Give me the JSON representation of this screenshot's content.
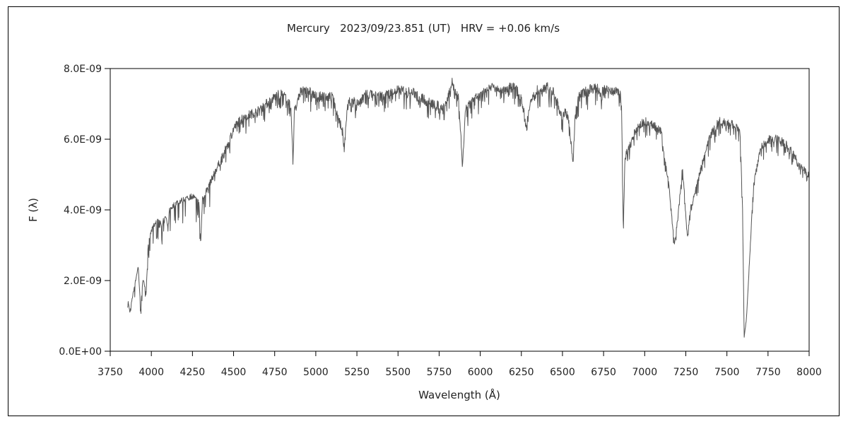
{
  "chart_data": {
    "type": "line",
    "title": "Mercury   2023/09/23.851 (UT)   HRV = +0.06 km/s",
    "xlabel": "Wavelength (Å)",
    "ylabel": "F (λ)",
    "xlim": [
      3750,
      8000
    ],
    "ylim": [
      0,
      8e-09
    ],
    "grid": false,
    "x_ticks": [
      3750,
      4000,
      4250,
      4500,
      4750,
      5000,
      5250,
      5500,
      5750,
      6000,
      6250,
      6500,
      6750,
      7000,
      7250,
      7500,
      7750,
      8000
    ],
    "x_tick_labels": [
      "3750",
      "4000",
      "4250",
      "4500",
      "4750",
      "5000",
      "5250",
      "5500",
      "5750",
      "6000",
      "6250",
      "6500",
      "6750",
      "7000",
      "7250",
      "7500",
      "7750",
      "8000"
    ],
    "y_ticks": [
      0,
      2e-09,
      4e-09,
      6e-09,
      8e-09
    ],
    "y_tick_labels": [
      "0.0E+00",
      "2.0E-09",
      "4.0E-09",
      "6.0E-09",
      "8.0E-09"
    ],
    "line_color": "#555555",
    "series": [
      {
        "x": [
          3855,
          3870,
          3880,
          3900,
          3920,
          3935,
          3950,
          3968,
          3980,
          4000,
          4030,
          4060,
          4090,
          4101,
          4110,
          4150,
          4200,
          4250,
          4290,
          4300,
          4310,
          4340,
          4400,
          4450,
          4500,
          4550,
          4600,
          4650,
          4700,
          4750,
          4800,
          4850,
          4861,
          4870,
          4900,
          4950,
          5000,
          5100,
          5167,
          5173,
          5183,
          5200,
          5270,
          5300,
          5400,
          5500,
          5600,
          5700,
          5780,
          5830,
          5870,
          5890,
          5896,
          5910,
          5950,
          6000,
          6050,
          6100,
          6150,
          6200,
          6250,
          6280,
          6300,
          6350,
          6400,
          6450,
          6500,
          6520,
          6540,
          6563,
          6580,
          6600,
          6650,
          6700,
          6750,
          6800,
          6850,
          6860,
          6870,
          6880,
          6900,
          6950,
          7000,
          7050,
          7100,
          7150,
          7180,
          7200,
          7230,
          7260,
          7280,
          7300,
          7350,
          7400,
          7450,
          7500,
          7550,
          7580,
          7595,
          7605,
          7620,
          7640,
          7660,
          7700,
          7750,
          7800,
          7850,
          7900,
          7950,
          8000
        ],
        "y": [
          1.5e-09,
          1.1e-09,
          1.4e-09,
          1.9e-09,
          2.4e-09,
          1.2e-09,
          2.1e-09,
          1.6e-09,
          3e-09,
          3.4e-09,
          3.7e-09,
          3.6e-09,
          3.8e-09,
          3.4e-09,
          4e-09,
          4.2e-09,
          4.3e-09,
          4.4e-09,
          4.2e-09,
          3e-09,
          4.3e-09,
          4.6e-09,
          5.2e-09,
          5.7e-09,
          6.3e-09,
          6.6e-09,
          6.7e-09,
          6.8e-09,
          7e-09,
          7.2e-09,
          7.3e-09,
          6.9e-09,
          5.3e-09,
          6.8e-09,
          7.3e-09,
          7.4e-09,
          7.2e-09,
          7.2e-09,
          6.2e-09,
          5.6e-09,
          6.5e-09,
          7.1e-09,
          7e-09,
          7.3e-09,
          7.2e-09,
          7.4e-09,
          7.3e-09,
          7e-09,
          6.9e-09,
          7.6e-09,
          7.1e-09,
          5.4e-09,
          5.6e-09,
          6.8e-09,
          7.1e-09,
          7.2e-09,
          7.5e-09,
          7.5e-09,
          7.4e-09,
          7.5e-09,
          7.2e-09,
          6.3e-09,
          7e-09,
          7.4e-09,
          7.5e-09,
          7.3e-09,
          6.6e-09,
          6.8e-09,
          6.5e-09,
          5.3e-09,
          6.9e-09,
          7.2e-09,
          7.4e-09,
          7.5e-09,
          7.4e-09,
          7.4e-09,
          7.3e-09,
          6.8e-09,
          3.4e-09,
          5.5e-09,
          5.7e-09,
          6.3e-09,
          6.5e-09,
          6.4e-09,
          6.2e-09,
          4.6e-09,
          3e-09,
          3.7e-09,
          5.2e-09,
          3.2e-09,
          4.1e-09,
          4.4e-09,
          5.3e-09,
          6.1e-09,
          6.5e-09,
          6.5e-09,
          6.4e-09,
          6.2e-09,
          4e-09,
          4e-10,
          1e-09,
          2.8e-09,
          4.6e-09,
          5.7e-09,
          6e-09,
          6e-09,
          5.9e-09,
          5.6e-09,
          5.2e-09,
          5e-09
        ]
      }
    ]
  }
}
